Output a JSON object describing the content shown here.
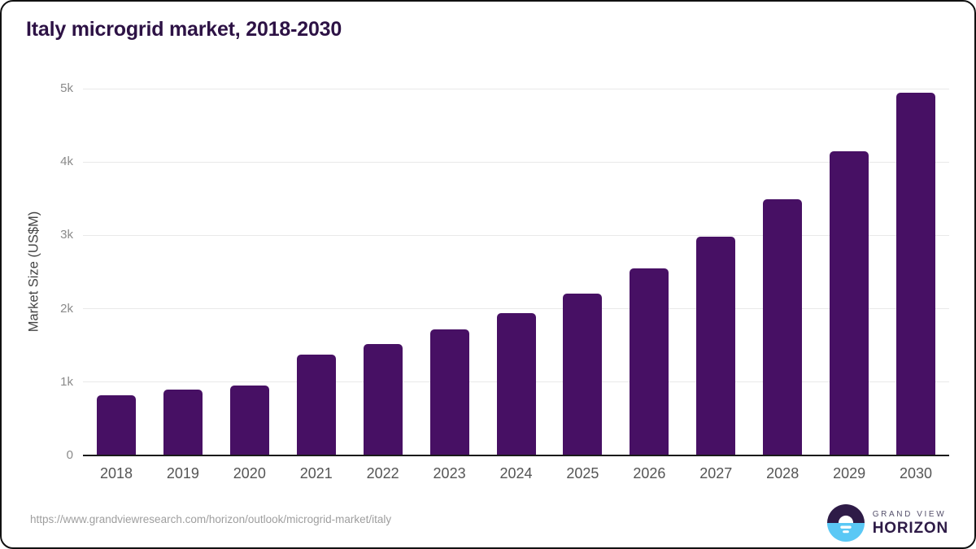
{
  "title": "Italy microgrid market, 2018-2030",
  "colors": {
    "bar": "#471064",
    "title": "#2d1245",
    "axis": "#1a1a1a",
    "grid": "#e9e9e9",
    "ytick": "#8a8a8a",
    "xtick": "#555555",
    "url": "#9e9e9e",
    "border": "#111111",
    "logo_dark": "#2e1b47",
    "logo_blue": "#5ac8f5",
    "logo_text": "#55506b"
  },
  "chart_data": {
    "type": "bar",
    "title": "Italy microgrid market, 2018-2030",
    "categories": [
      "2018",
      "2019",
      "2020",
      "2021",
      "2022",
      "2023",
      "2024",
      "2025",
      "2026",
      "2027",
      "2028",
      "2029",
      "2030"
    ],
    "values": [
      820,
      900,
      950,
      1370,
      1515,
      1715,
      1940,
      2205,
      2555,
      2980,
      3490,
      4145,
      4950
    ],
    "xlabel": "",
    "ylabel": "Market Size (US$M)",
    "ylim": [
      0,
      5000
    ],
    "yticks": [
      {
        "value": 0,
        "label": "0"
      },
      {
        "value": 1000,
        "label": "1k"
      },
      {
        "value": 2000,
        "label": "2k"
      },
      {
        "value": 3000,
        "label": "3k"
      },
      {
        "value": 4000,
        "label": "4k"
      },
      {
        "value": 5000,
        "label": "5k"
      }
    ],
    "grid": true,
    "legend": null,
    "bar_color": "#471064"
  },
  "footer": {
    "source_url": "https://www.grandviewresearch.com/horizon/outlook/microgrid-market/italy",
    "logo": {
      "line1": "GRAND VIEW",
      "line2": "HORIZON"
    }
  }
}
